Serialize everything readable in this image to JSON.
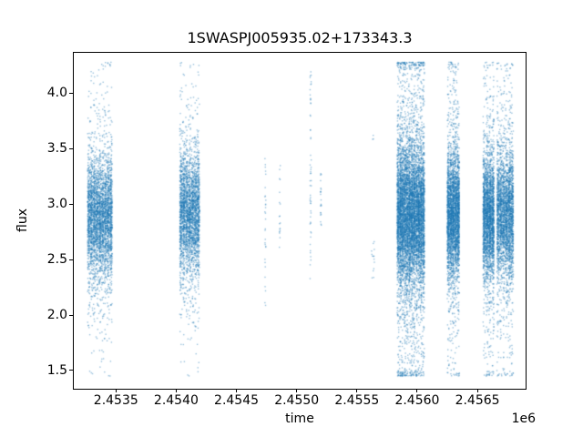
{
  "chart_data": {
    "type": "scatter",
    "title": "1SWASPJ005935.02+173343.3",
    "xlabel": "time",
    "ylabel": "flux",
    "x_offset_label": "1e6",
    "marker_color": "#1f77b4",
    "marker_alpha": 0.45,
    "grid": false,
    "legend": null,
    "seed": 42,
    "xlim": [
      2453150,
      2456900
    ],
    "ylim": [
      1.335,
      4.365
    ],
    "flux_min": 1.45,
    "flux_max": 4.28,
    "xticks": {
      "values": [
        2453500,
        2454000,
        2454500,
        2455000,
        2455500,
        2456000,
        2456500
      ],
      "labels": [
        "2.4535",
        "2.4540",
        "2.4545",
        "2.4550",
        "2.4555",
        "2.4560",
        "2.4565"
      ]
    },
    "yticks": {
      "values": [
        1.5,
        2.0,
        2.5,
        3.0,
        3.5,
        4.0
      ],
      "labels": [
        "1.5",
        "2.0",
        "2.5",
        "3.0",
        "3.5",
        "4.0"
      ]
    },
    "clusters": [
      {
        "x_start": 2453263,
        "x_end": 2453470,
        "n": 3500,
        "columns": 9,
        "flux": {
          "type": "gaussian-mix",
          "mean": 2.88,
          "core_std": 0.26,
          "tail_std": 0.6,
          "tail_frac": 0.22
        }
      },
      {
        "x_start": 2454028,
        "x_end": 2454195,
        "n": 2800,
        "columns": 7,
        "flux": {
          "type": "gaussian-mix",
          "mean": 2.92,
          "core_std": 0.27,
          "tail_std": 0.55,
          "tail_frac": 0.2
        }
      },
      {
        "x_start": 2454735,
        "x_end": 2454745,
        "n": 30,
        "columns": 1,
        "flux": {
          "type": "uniform",
          "min": 2.05,
          "max": 3.42
        }
      },
      {
        "x_start": 2454855,
        "x_end": 2454865,
        "n": 18,
        "columns": 1,
        "flux": {
          "type": "uniform",
          "min": 2.6,
          "max": 3.35
        }
      },
      {
        "x_start": 2455110,
        "x_end": 2455122,
        "n": 55,
        "columns": 1,
        "flux": {
          "type": "uniform",
          "min": 2.3,
          "max": 4.26
        }
      },
      {
        "x_start": 2455196,
        "x_end": 2455206,
        "n": 22,
        "columns": 1,
        "flux": {
          "type": "uniform",
          "min": 2.75,
          "max": 3.32
        }
      },
      {
        "x_start": 2455620,
        "x_end": 2455648,
        "n": 14,
        "columns": 2,
        "flux": {
          "type": "uniform",
          "min": 2.32,
          "max": 2.68
        }
      },
      {
        "x_start": 2455628,
        "x_end": 2455640,
        "n": 3,
        "columns": 1,
        "flux": {
          "type": "uniform",
          "min": 3.55,
          "max": 3.72
        }
      },
      {
        "x_start": 2455832,
        "x_end": 2456062,
        "n": 7500,
        "columns": 12,
        "flux": {
          "type": "gaussian-mix",
          "mean": 2.9,
          "core_std": 0.3,
          "tail_std": 0.85,
          "tail_frac": 0.3
        }
      },
      {
        "x_start": 2456248,
        "x_end": 2456352,
        "n": 3200,
        "columns": 5,
        "flux": {
          "type": "gaussian-mix",
          "mean": 2.9,
          "core_std": 0.27,
          "tail_std": 0.7,
          "tail_frac": 0.25
        }
      },
      {
        "x_start": 2456545,
        "x_end": 2456640,
        "n": 2600,
        "columns": 4,
        "flux": {
          "type": "gaussian-mix",
          "mean": 2.88,
          "core_std": 0.26,
          "tail_std": 0.7,
          "tail_frac": 0.24
        }
      },
      {
        "x_start": 2456660,
        "x_end": 2456800,
        "n": 3000,
        "columns": 6,
        "flux": {
          "type": "gaussian-mix",
          "mean": 2.9,
          "core_std": 0.27,
          "tail_std": 0.7,
          "tail_frac": 0.24
        }
      }
    ]
  }
}
